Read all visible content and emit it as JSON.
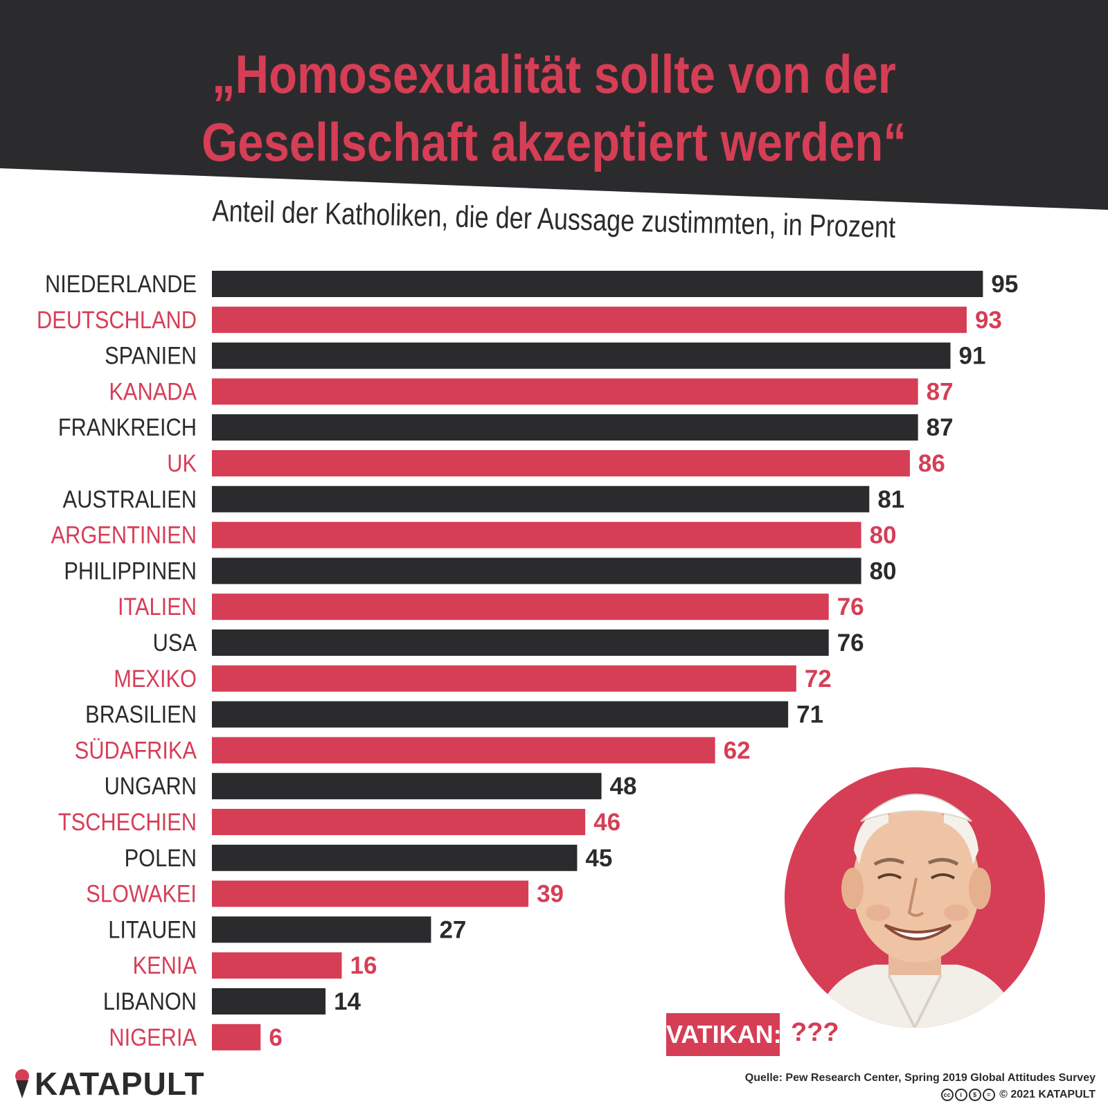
{
  "title": {
    "line1": "„Homosexualität sollte von der",
    "line2": "Gesellschaft akzeptiert werden“"
  },
  "subtitle": "Anteil der Katholiken, die der Aussage zustimmten, in Prozent",
  "colors": {
    "header": "#2b2b2d",
    "accent": "#d63e56",
    "dark_bar": "#2b2b2d"
  },
  "chart_data": {
    "type": "bar",
    "orientation": "horizontal",
    "categories": [
      "NIEDERLANDE",
      "DEUTSCHLAND",
      "SPANIEN",
      "KANADA",
      "FRANKREICH",
      "UK",
      "AUSTRALIEN",
      "ARGENTINIEN",
      "PHILIPPINEN",
      "ITALIEN",
      "USA",
      "MEXIKO",
      "BRASILIEN",
      "SÜDAFRIKA",
      "UNGARN",
      "TSCHECHIEN",
      "POLEN",
      "SLOWAKEI",
      "LITAUEN",
      "KENIA",
      "LIBANON",
      "NIGERIA"
    ],
    "values": [
      95,
      93,
      91,
      87,
      87,
      86,
      81,
      80,
      80,
      76,
      76,
      72,
      71,
      62,
      48,
      46,
      45,
      39,
      27,
      16,
      14,
      6
    ],
    "bar_colors": [
      "dark",
      "accent",
      "dark",
      "accent",
      "dark",
      "accent",
      "dark",
      "accent",
      "dark",
      "accent",
      "dark",
      "accent",
      "dark",
      "accent",
      "dark",
      "accent",
      "dark",
      "accent",
      "dark",
      "accent",
      "dark",
      "accent"
    ],
    "xlim": [
      0,
      100
    ],
    "grid": false,
    "legend": "none"
  },
  "vatikan": {
    "label": "VATIKAN:",
    "value": "???"
  },
  "logo": {
    "text": "KATAPULT",
    "icon": "ice-cream-cone-icon"
  },
  "source": "Quelle: Pew Research Center, Spring 2019 Global Attitudes Survey",
  "copyright": "2021 KATAPULT",
  "license_icons": [
    "cc-icon",
    "by-icon",
    "nc-icon",
    "nd-icon"
  ]
}
